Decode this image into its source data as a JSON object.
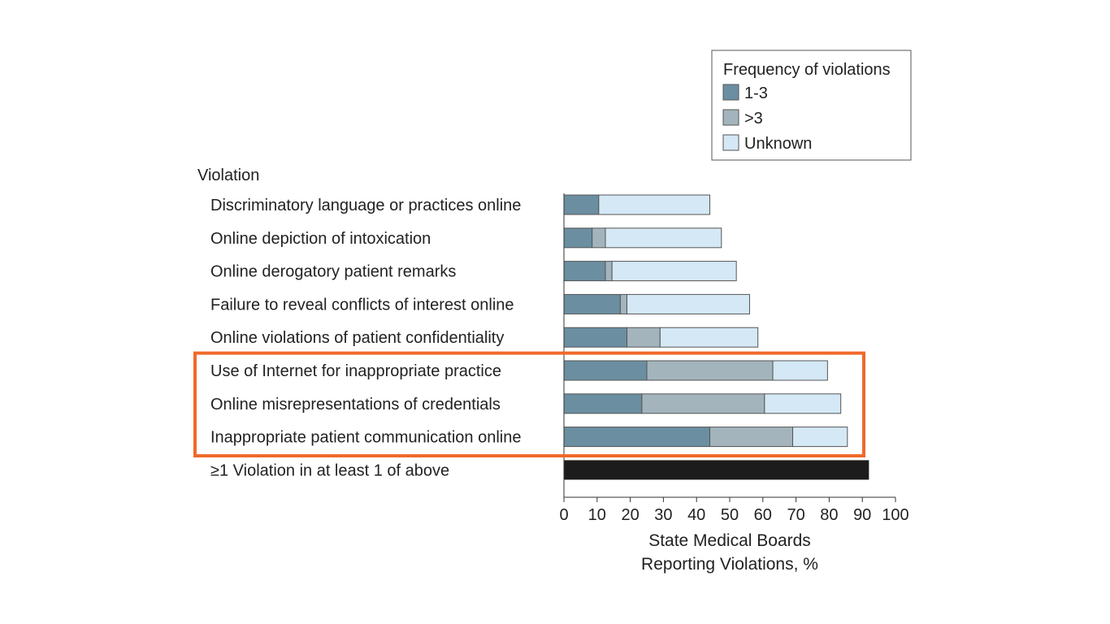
{
  "chart_data": {
    "type": "bar",
    "orientation": "horizontal",
    "stacked": true,
    "category_header": "Violation",
    "categories": [
      "Discriminatory language or practices online",
      "Online depiction of intoxication",
      "Online derogatory patient remarks",
      "Failure to reveal conflicts of interest online",
      "Online violations of patient confidentiality",
      "Use of Internet for inappropriate practice",
      "Online misrepresentations of credentials",
      "Inappropriate patient communication online",
      "≥1 Violation in at least 1 of above"
    ],
    "legend_title": "Frequency of violations",
    "series": [
      {
        "name": "1-3",
        "color": "#6b8ea1",
        "values": [
          10.5,
          8.5,
          12.5,
          17,
          19,
          25,
          23.5,
          44,
          0
        ]
      },
      {
        "name": ">3",
        "color": "#a3b4bc",
        "values": [
          0,
          4,
          2,
          2,
          10,
          38,
          37,
          25,
          0
        ]
      },
      {
        "name": "Unknown",
        "color": "#d4e8f5",
        "values": [
          33.5,
          35,
          37.5,
          37,
          29.5,
          16.5,
          23,
          16.5,
          0
        ]
      }
    ],
    "total_bar": {
      "category_index": 8,
      "value": 92,
      "color": "#1c1c1c"
    },
    "highlight": {
      "categories": [
        5,
        6,
        7
      ],
      "color": "#ef6a2a"
    },
    "xlabel": [
      "State Medical Boards",
      "Reporting Violations, %"
    ],
    "xlim": [
      0,
      100
    ],
    "xticks": [
      0,
      10,
      20,
      30,
      40,
      50,
      60,
      70,
      80,
      90,
      100
    ],
    "grid": false,
    "legend_position": "top-right"
  }
}
